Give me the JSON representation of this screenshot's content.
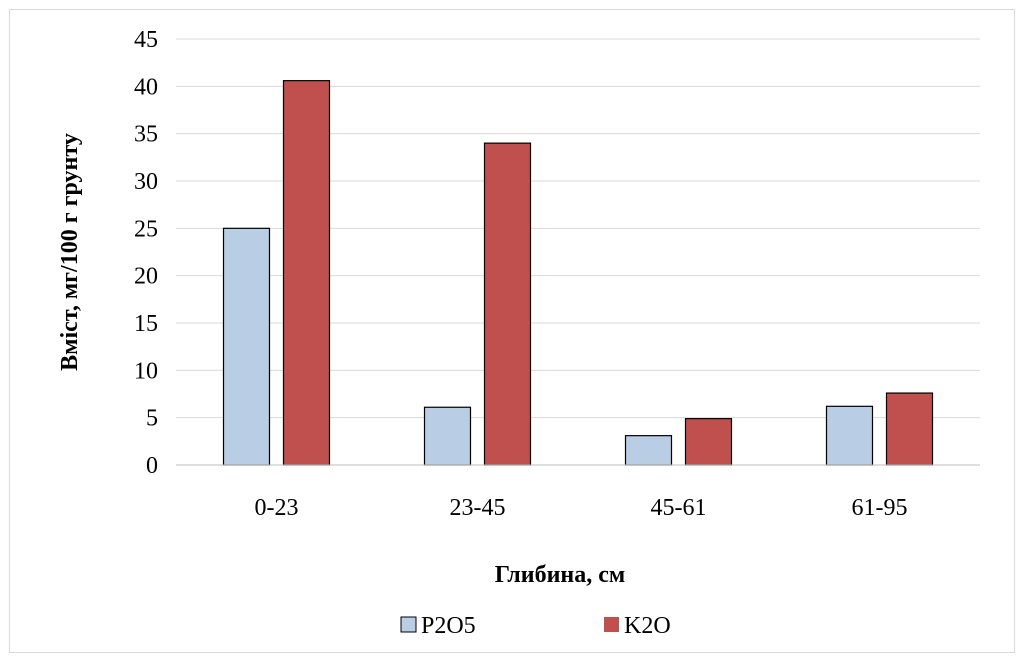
{
  "chart_data": {
    "type": "bar",
    "title": "",
    "xlabel": "Глибина, см",
    "ylabel": "Вміст, мг/100 г грунту",
    "categories": [
      "0-23",
      "23-45",
      "45-61",
      "61-95"
    ],
    "series": [
      {
        "name": "P2O5",
        "values": [
          25.0,
          6.1,
          3.1,
          6.2
        ],
        "color": "#b9cde5"
      },
      {
        "name": "K2O",
        "values": [
          40.6,
          34.0,
          4.9,
          7.6
        ],
        "color": "#c0504d"
      }
    ],
    "ylim": [
      0,
      45
    ],
    "yticks": [
      "0",
      "5",
      "10",
      "15",
      "20",
      "25",
      "30",
      "35",
      "40",
      "45"
    ],
    "grid": true,
    "legend_position": "bottom"
  }
}
